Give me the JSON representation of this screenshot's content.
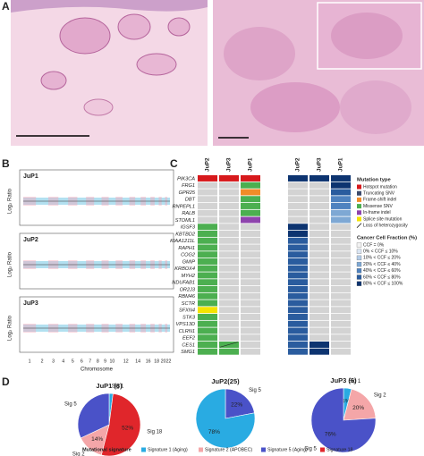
{
  "panel_labels": [
    "A",
    "B",
    "C",
    "D"
  ],
  "copy_number": {
    "samples": [
      "JuP1",
      "JuP2",
      "JuP3"
    ],
    "y_label": "Log₂ Ratio",
    "x_label": "Chromosome",
    "chromosome_ticks": [
      "1",
      "2",
      "3",
      "4",
      "5",
      "6",
      "7",
      "8",
      "9",
      "10",
      "12",
      "14",
      "16",
      "18",
      "20",
      "22"
    ]
  },
  "mutation_heatmap": {
    "mutation_columns": [
      "JuP2",
      "JuP3",
      "JuP1"
    ],
    "ccf_columns": [
      "JuP2",
      "JuP3",
      "JuP1"
    ],
    "genes": [
      "PIK3CA",
      "FRG1",
      "GPR25",
      "DBT",
      "RNPEPL1",
      "RALB",
      "STOML1",
      "IGSF3",
      "KBTBD2",
      "KIAA1211L",
      "RAPH1",
      "COG2",
      "GMIP",
      "KRBOX4",
      "MYH2",
      "NDUFAB1",
      "OR2J3",
      "RBM46",
      "SCTR",
      "SFXN4",
      "STK3",
      "VPS13D",
      "CLRN1",
      "EEF2",
      "CES1",
      "SMG1"
    ],
    "mutation_type_title": "Mutation type",
    "mutation_types": [
      {
        "name": "Hotspot mutation",
        "color": "#d7191c"
      },
      {
        "name": "Truncating SNV",
        "color": "#3c4a6b"
      },
      {
        "name": "Frame-shift indel",
        "color": "#f28c28"
      },
      {
        "name": "Missense SNV",
        "color": "#4caf50"
      },
      {
        "name": "In-frame indel",
        "color": "#8e44ad"
      },
      {
        "name": "Splice site mutation",
        "color": "#f5e400"
      },
      {
        "name": "Loss of heterozygosity",
        "color": "#222222"
      }
    ],
    "types": [
      [
        0,
        0,
        0
      ],
      [
        null,
        null,
        3
      ],
      [
        null,
        null,
        2
      ],
      [
        null,
        null,
        3
      ],
      [
        null,
        null,
        3
      ],
      [
        null,
        null,
        3
      ],
      [
        null,
        null,
        4
      ],
      [
        3,
        null,
        null
      ],
      [
        3,
        null,
        null
      ],
      [
        3,
        null,
        null
      ],
      [
        3,
        null,
        null
      ],
      [
        3,
        null,
        null
      ],
      [
        3,
        null,
        null
      ],
      [
        3,
        null,
        null
      ],
      [
        3,
        null,
        null
      ],
      [
        3,
        null,
        null
      ],
      [
        3,
        null,
        null
      ],
      [
        3,
        null,
        null
      ],
      [
        3,
        null,
        null
      ],
      [
        5,
        null,
        null
      ],
      [
        3,
        null,
        null
      ],
      [
        3,
        null,
        null
      ],
      [
        3,
        null,
        null
      ],
      [
        3,
        null,
        null
      ],
      [
        3,
        3,
        null
      ],
      [
        3,
        3,
        null
      ]
    ],
    "loh": [
      [
        24,
        1
      ]
    ],
    "ccf_title": "Cancer Cell Fraction (%)",
    "ccf_bins": [
      {
        "name": "CCF = 0%",
        "color": "#f2f2f2"
      },
      {
        "name": "0% < CCF ≤ 10%",
        "color": "#dbe6f3"
      },
      {
        "name": "10% < CCF ≤ 20%",
        "color": "#b3cbe6"
      },
      {
        "name": "20% < CCF ≤ 40%",
        "color": "#7ea8d4"
      },
      {
        "name": "40% < CCF ≤ 60%",
        "color": "#4f82bf"
      },
      {
        "name": "60% < CCF ≤ 80%",
        "color": "#2a5c9e"
      },
      {
        "name": "80% < CCF ≤ 100%",
        "color": "#0d3470"
      }
    ],
    "ccf": [
      [
        6,
        6,
        6
      ],
      [
        null,
        null,
        6
      ],
      [
        null,
        null,
        5
      ],
      [
        null,
        null,
        4
      ],
      [
        null,
        null,
        4
      ],
      [
        null,
        null,
        3
      ],
      [
        null,
        null,
        3
      ],
      [
        6,
        null,
        null
      ],
      [
        6,
        null,
        null
      ],
      [
        5,
        null,
        null
      ],
      [
        5,
        null,
        null
      ],
      [
        5,
        null,
        null
      ],
      [
        5,
        null,
        null
      ],
      [
        5,
        null,
        null
      ],
      [
        5,
        null,
        null
      ],
      [
        5,
        null,
        null
      ],
      [
        5,
        null,
        null
      ],
      [
        5,
        null,
        null
      ],
      [
        5,
        null,
        null
      ],
      [
        5,
        null,
        null
      ],
      [
        5,
        null,
        null
      ],
      [
        5,
        null,
        null
      ],
      [
        5,
        null,
        null
      ],
      [
        5,
        null,
        null
      ],
      [
        5,
        6,
        null
      ],
      [
        5,
        6,
        null
      ]
    ]
  },
  "chart_data": [
    {
      "type": "pie",
      "title": "JuP1 (8)",
      "categories": [
        "Sig 1",
        "Sig 18",
        "Sig 2",
        "Sig 5"
      ],
      "values": [
        2,
        52,
        14,
        32
      ],
      "value_labels": [
        null,
        "52%",
        "14%",
        null
      ],
      "colors": [
        "#29abe2",
        "#e0262b",
        "#f4a6a8",
        "#4a52c8"
      ]
    },
    {
      "type": "pie",
      "title": "JuP2(25)",
      "categories": [
        "Sig 5",
        null
      ],
      "values": [
        22,
        78
      ],
      "value_labels": [
        "22%",
        "78%"
      ],
      "colors": [
        "#4a52c8",
        "#29abe2"
      ]
    },
    {
      "type": "pie",
      "title": "JuP3 (6)",
      "categories": [
        "Sig 1",
        "Sig 2",
        "Sig 5"
      ],
      "values": [
        4,
        20,
        76
      ],
      "value_labels": [
        "4%",
        "20%",
        "76%"
      ],
      "colors": [
        "#29abe2",
        "#f4a6a8",
        "#4a52c8"
      ]
    }
  ],
  "signature_legend": {
    "title": "Mutational signature",
    "items": [
      {
        "name": "Signature 1 (Aging)",
        "color": "#29abe2"
      },
      {
        "name": "Signature 2 (APOBEC)",
        "color": "#f4a6a8"
      },
      {
        "name": "Signature 5 (Aging)",
        "color": "#4a52c8"
      },
      {
        "name": "Signature 18",
        "color": "#e0262b"
      }
    ]
  }
}
